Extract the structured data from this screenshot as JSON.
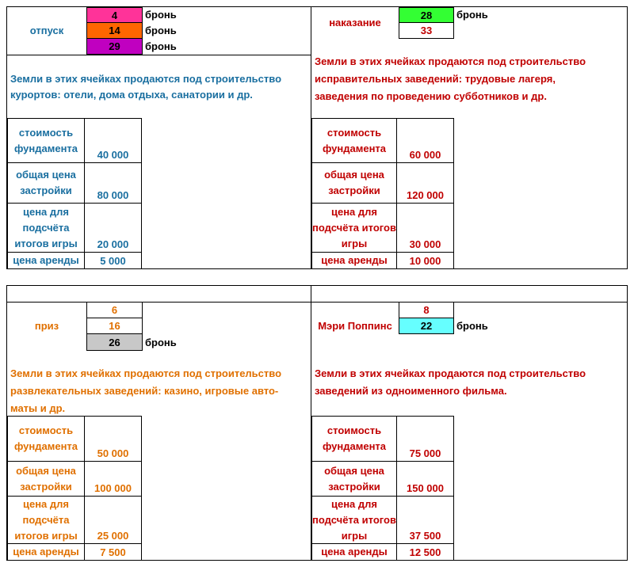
{
  "bron_word": "бронь",
  "otpusk": {
    "title": "отпуск",
    "cells": [
      "4",
      "14",
      "29"
    ],
    "colors": [
      "#ff3399",
      "#ff6600",
      "#c000c0"
    ],
    "desc": [
      "Земли в этих ячейках продаются под строительство",
      "курортов: отели, дома отдыха, санатории и др."
    ],
    "rows": [
      {
        "k": "стоимость фундамента",
        "v": "40 000"
      },
      {
        "k": "общая цена застройки",
        "v": "80 000"
      },
      {
        "k": "цена для подсчёта итогов игры",
        "v": "20 000"
      },
      {
        "k": "цена аренды",
        "v": "5 000"
      }
    ],
    "text_color": "#1a6fa0"
  },
  "nakazanie": {
    "title": "наказание",
    "cells": [
      "28",
      "33"
    ],
    "colors": [
      "#33ff33",
      "#ffffff"
    ],
    "desc": [
      "Земли в этих ячейках продаются под строительство",
      "исправительных заведений: трудовые лагеря,",
      "заведения по проведению субботников и др."
    ],
    "rows": [
      {
        "k": "стоимость фундамента",
        "v": "60 000"
      },
      {
        "k": "общая цена застройки",
        "v": "120 000"
      },
      {
        "k": "цена для подсчёта итогов игры",
        "v": "30 000"
      },
      {
        "k": "цена аренды",
        "v": "10 000"
      }
    ],
    "text_color": "#c00000"
  },
  "priz": {
    "title": "приз",
    "cells": [
      "6",
      "16",
      "26"
    ],
    "colors": [
      "#ffffff",
      "#ffffff",
      "#c8c8c8"
    ],
    "desc": [
      "Земли в этих ячейках продаются под строительство",
      "развлекательных заведений: казино, игровые авто-",
      "маты и др."
    ],
    "rows": [
      {
        "k": "стоимость фундамента",
        "v": "50 000"
      },
      {
        "k": "общая цена застройки",
        "v": "100 000"
      },
      {
        "k": "цена для подсчёта итогов игры",
        "v": "25 000"
      },
      {
        "k": "цена аренды",
        "v": "7 500"
      }
    ],
    "text_color": "#e07000"
  },
  "poppins": {
    "title": "Мэри Поппинс",
    "cells": [
      "8",
      "22"
    ],
    "colors": [
      "#ffffff",
      "#66ffff"
    ],
    "desc": [
      "Земли в этих ячейках продаются под строительство",
      "заведений из одноименного фильма."
    ],
    "rows": [
      {
        "k": "стоимость фундамента",
        "v": "75 000"
      },
      {
        "k": "общая цена застройки",
        "v": "150 000"
      },
      {
        "k": "цена для подсчёта итогов игры",
        "v": "37 500"
      },
      {
        "k": "цена аренды",
        "v": "12 500"
      }
    ],
    "text_color": "#c00000"
  }
}
